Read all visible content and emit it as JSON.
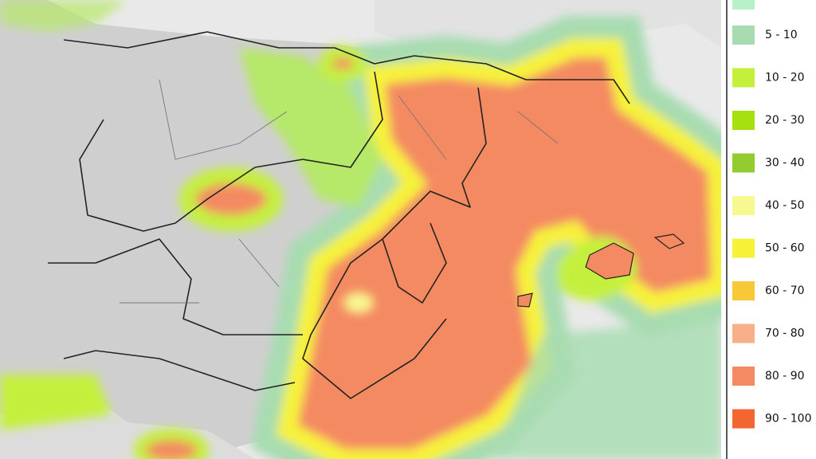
{
  "legend": {
    "items": [
      {
        "label": "5 - 10",
        "color": "#a8dcb0"
      },
      {
        "label": "10 - 20",
        "color": "#c4f03c"
      },
      {
        "label": "20 - 30",
        "color": "#a6e010"
      },
      {
        "label": "30 - 40",
        "color": "#92cc30"
      },
      {
        "label": "40 - 50",
        "color": "#f8f890"
      },
      {
        "label": "50 - 60",
        "color": "#f6f23a"
      },
      {
        "label": "60 - 70",
        "color": "#f8c838"
      },
      {
        "label": "70 - 80",
        "color": "#f8b088"
      },
      {
        "label": "80 - 90",
        "color": "#f48a62"
      },
      {
        "label": "90 - 100",
        "color": "#f46630"
      }
    ]
  }
}
